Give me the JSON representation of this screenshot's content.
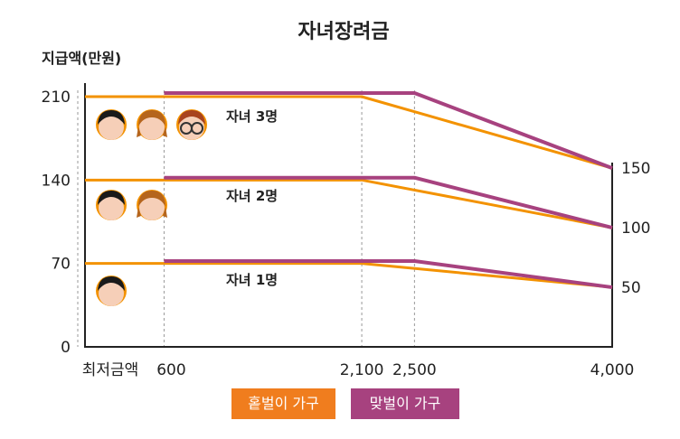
{
  "chart_data": {
    "type": "line",
    "title": "자녀장려금",
    "ylabel": "지급액(만원)",
    "xlabel": "",
    "x_tick_labels": [
      "최저금액",
      "600",
      "2,100",
      "2,500",
      "4,000"
    ],
    "x_ticks": [
      0,
      600,
      2100,
      2500,
      4000
    ],
    "y_ticks": [
      0,
      70,
      140,
      210
    ],
    "y_tick_labels": [
      "0",
      "70",
      "140",
      "210"
    ],
    "right_labels": [
      "150",
      "100",
      "50"
    ],
    "ylim": [
      0,
      210
    ],
    "xlim": [
      0,
      4000
    ],
    "grid": "vertical dashed lines at 600, 2,100, 2,500",
    "annotations": [
      "자녀 3명",
      "자녀 2명",
      "자녀 1명"
    ],
    "series": [
      {
        "name": "홑벌이 가구",
        "group": "자녀 3명",
        "x": [
          0,
          2100,
          4000
        ],
        "y": [
          210,
          210,
          150
        ]
      },
      {
        "name": "맞벌이 가구",
        "group": "자녀 3명",
        "x": [
          600,
          2500,
          4000
        ],
        "y": [
          213,
          213,
          150
        ]
      },
      {
        "name": "홑벌이 가구",
        "group": "자녀 2명",
        "x": [
          0,
          2100,
          4000
        ],
        "y": [
          140,
          140,
          100
        ]
      },
      {
        "name": "맞벌이 가구",
        "group": "자녀 2명",
        "x": [
          600,
          2500,
          4000
        ],
        "y": [
          142,
          142,
          100
        ]
      },
      {
        "name": "홑벌이 가구",
        "group": "자녀 1명",
        "x": [
          0,
          2100,
          4000
        ],
        "y": [
          70,
          70,
          50
        ]
      },
      {
        "name": "맞벌이 가구",
        "group": "자녀 1명",
        "x": [
          600,
          2500,
          4000
        ],
        "y": [
          72,
          72,
          50
        ]
      }
    ],
    "legend": [
      "홑벌이 가구",
      "맞벌이 가구"
    ],
    "legend_position": "bottom-center"
  },
  "colors": {
    "single_income": "#F39200",
    "dual_income": "#A7427F",
    "legend_single": "#F07D1E",
    "legend_dual": "#A7427F",
    "axis": "#222222",
    "grid": "#999999"
  },
  "icons": [
    "child-face-icon",
    "child-face-icon",
    "child-face-glasses-icon"
  ]
}
